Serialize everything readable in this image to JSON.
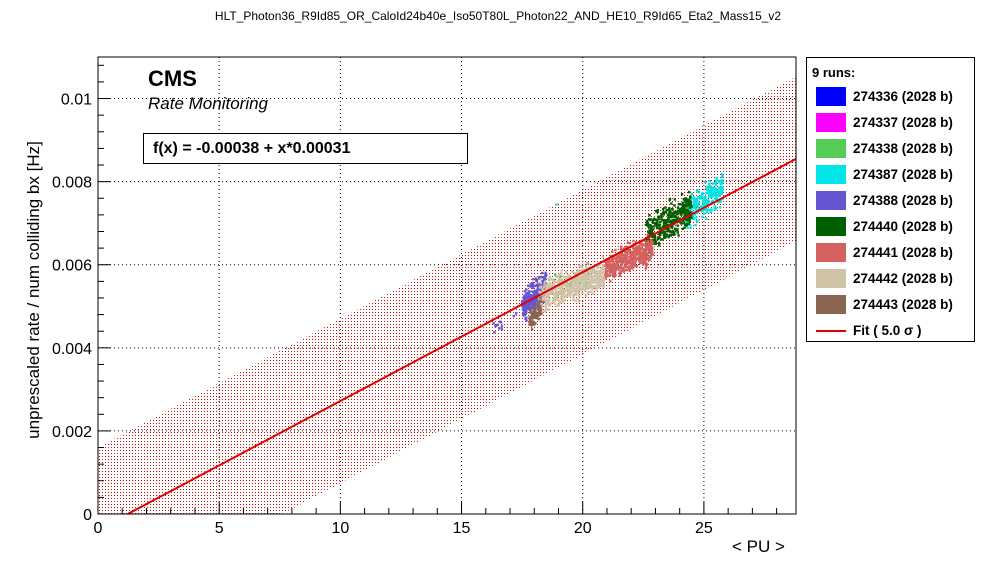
{
  "chart_data": {
    "type": "scatter",
    "title": "HLT_Photon36_R9Id85_OR_CaloId24b40e_Iso50T80L_Photon22_AND_HE10_R9Id65_Eta2_Mass15_v2",
    "xlabel": "< PU >",
    "ylabel": "unprescaled rate / num colliding bx [Hz]",
    "xlim": [
      0,
      28.8
    ],
    "ylim": [
      0,
      0.011
    ],
    "x_ticks": [
      "0",
      "5",
      "10",
      "15",
      "20",
      "25"
    ],
    "y_ticks": [
      "0",
      "0.002",
      "0.004",
      "0.006",
      "0.008",
      "0.01"
    ],
    "grid": true,
    "cms_label": "CMS",
    "cms_sublabel": "Rate Monitoring",
    "fit_text": "f(x) = -0.00038 + x*0.00031",
    "fit": {
      "intercept": -0.00038,
      "slope": 0.00031,
      "sigma": 5.0,
      "band_halfwidth": 0.00198,
      "color": "#e00000"
    },
    "legend": {
      "header": "9 runs:",
      "position": "right-outside",
      "fit_label": "Fit ( 5.0 σ )"
    },
    "series": [
      {
        "name": "274336 (2028 b)",
        "color": "#0000ff",
        "clusters": []
      },
      {
        "name": "274337 (2028 b)",
        "color": "#ff00ff",
        "clusters": []
      },
      {
        "name": "274338 (2028 b)",
        "color": "#55cc55",
        "clusters": [
          {
            "x": [
              18.3,
              21.0
            ],
            "y": [
              0.0049,
              0.0063
            ],
            "n": 40
          }
        ]
      },
      {
        "name": "274387 (2028 b)",
        "color": "#00e5e5",
        "clusters": [
          {
            "x": [
              24.3,
              25.8
            ],
            "y": [
              0.0067,
              0.0084
            ],
            "n": 230
          },
          {
            "x": [
              18.8,
              19.2
            ],
            "y": [
              0.0074,
              0.0075
            ],
            "n": 1
          }
        ]
      },
      {
        "name": "274388 (2028 b)",
        "color": "#6655d0",
        "clusters": [
          {
            "x": [
              17.5,
              18.5
            ],
            "y": [
              0.0045,
              0.006
            ],
            "n": 320
          },
          {
            "x": [
              16.2,
              18.0
            ],
            "y": [
              0.004,
              0.0052
            ],
            "n": 15
          }
        ]
      },
      {
        "name": "274440 (2028 b)",
        "color": "#005f00",
        "clusters": [
          {
            "x": [
              22.6,
              24.5
            ],
            "y": [
              0.006,
              0.008
            ],
            "n": 380
          }
        ]
      },
      {
        "name": "274441 (2028 b)",
        "color": "#d46060",
        "clusters": [
          {
            "x": [
              20.9,
              22.9
            ],
            "y": [
              0.0054,
              0.0069
            ],
            "n": 420
          }
        ]
      },
      {
        "name": "274442 (2028 b)",
        "color": "#cfc3a8",
        "clusters": [
          {
            "x": [
              18.2,
              20.9
            ],
            "y": [
              0.0047,
              0.0063
            ],
            "n": 520
          }
        ]
      },
      {
        "name": "274443 (2028 b)",
        "color": "#8a6652",
        "clusters": [
          {
            "x": [
              17.8,
              18.3
            ],
            "y": [
              0.0043,
              0.0053
            ],
            "n": 80
          }
        ]
      }
    ]
  }
}
